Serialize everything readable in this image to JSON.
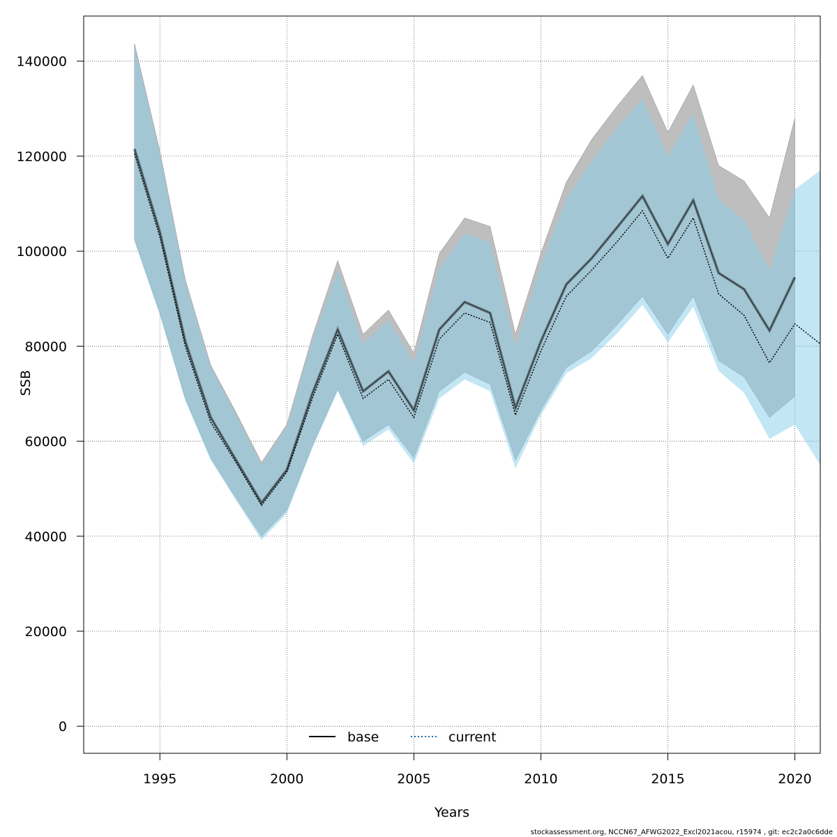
{
  "chart_data": {
    "type": "line",
    "title": "",
    "xlabel": "Years",
    "ylabel": "SSB",
    "xlim": [
      1992,
      2021
    ],
    "ylim": [
      -5700,
      149500
    ],
    "xticks": [
      1995,
      2000,
      2005,
      2010,
      2015,
      2020
    ],
    "yticks": [
      0,
      20000,
      40000,
      60000,
      80000,
      100000,
      120000,
      140000
    ],
    "grid": true,
    "legend_position": "bottom",
    "series": [
      {
        "name": "base",
        "line_color": "#000000",
        "band_color": "#bebebe",
        "line_style": "solid",
        "x": [
          1994,
          1995,
          1996,
          1997,
          1998,
          1999,
          2000,
          2001,
          2002,
          2003,
          2004,
          2005,
          2006,
          2007,
          2008,
          2009,
          2010,
          2011,
          2012,
          2013,
          2014,
          2015,
          2016,
          2017,
          2018,
          2019,
          2020
        ],
        "values": [
          121500,
          104000,
          81000,
          65000,
          56000,
          47000,
          54000,
          70000,
          83500,
          70500,
          74700,
          66500,
          83500,
          89300,
          87000,
          67000,
          81000,
          93000,
          98500,
          105000,
          111600,
          101500,
          110700,
          95400,
          92000,
          83300,
          94500
        ],
        "lower": [
          102500,
          87000,
          69000,
          56500,
          48000,
          40000,
          45500,
          59000,
          71000,
          60000,
          63500,
          56500,
          70500,
          74500,
          72000,
          56000,
          66500,
          75500,
          79000,
          84500,
          90500,
          82500,
          90500,
          77000,
          73500,
          65000,
          69500
        ],
        "upper": [
          143700,
          121000,
          94000,
          76000,
          66000,
          55500,
          63500,
          82000,
          98000,
          82500,
          87600,
          78500,
          99500,
          107000,
          105200,
          82500,
          99500,
          114500,
          123500,
          130500,
          137000,
          125000,
          135000,
          118000,
          114800,
          107000,
          128000
        ]
      },
      {
        "name": "current",
        "line_color": "#1f6cb0",
        "band_color": "#87ceeb",
        "line_style": "dotted",
        "x": [
          1994,
          1995,
          1996,
          1997,
          1998,
          1999,
          2000,
          2001,
          2002,
          2003,
          2004,
          2005,
          2006,
          2007,
          2008,
          2009,
          2010,
          2011,
          2012,
          2013,
          2014,
          2015,
          2016,
          2017,
          2018,
          2019,
          2020,
          2021
        ],
        "values": [
          120500,
          103000,
          80000,
          64000,
          55500,
          46500,
          53500,
          69000,
          82500,
          69000,
          73000,
          65000,
          81500,
          87000,
          85000,
          65500,
          79000,
          90500,
          96000,
          102000,
          108500,
          98500,
          107000,
          91000,
          86500,
          76500,
          84700,
          80500
        ],
        "lower": [
          102000,
          86500,
          68500,
          56000,
          47500,
          39200,
          44800,
          58500,
          70500,
          59000,
          62500,
          55300,
          69000,
          73000,
          70500,
          54300,
          65500,
          74300,
          77500,
          82700,
          88700,
          80800,
          88300,
          74800,
          70200,
          60500,
          63500,
          55000
        ],
        "upper": [
          143000,
          120500,
          93500,
          75500,
          65500,
          55000,
          63000,
          81000,
          96000,
          80500,
          85500,
          76500,
          96500,
          103700,
          102000,
          80000,
          97000,
          111000,
          119000,
          126000,
          132000,
          120000,
          129000,
          111000,
          106500,
          96000,
          113000,
          117000
        ]
      }
    ]
  },
  "footnote": "stockassessment.org, NCCN67_AFWG2022_Excl2021acou, r15974 , git: ec2c2a0c6dde"
}
